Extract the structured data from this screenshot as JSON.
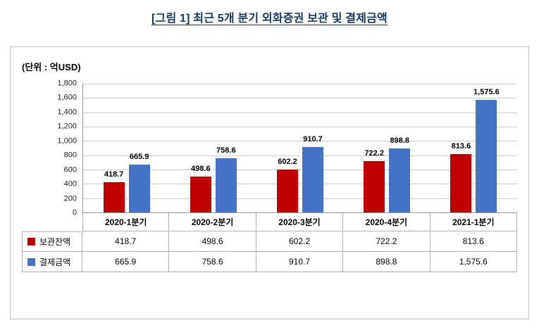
{
  "title": "[그림 1] 최근 5개 분기 외화증권 보관 및 결제금액",
  "unit_label": "(단위 : 억USD)",
  "chart_data": {
    "type": "bar",
    "title": "최근 5개 분기 외화증권 보관 및 결제금액",
    "categories": [
      "2020-1분기",
      "2020-2분기",
      "2020-3분기",
      "2020-4분기",
      "2021-1분기"
    ],
    "series": [
      {
        "name": "보관잔액",
        "color": "#C00000",
        "values": [
          418.7,
          498.6,
          602.2,
          722.2,
          813.6
        ]
      },
      {
        "name": "결제금액",
        "color": "#4472C4",
        "values": [
          665.9,
          758.6,
          910.7,
          898.8,
          1575.6
        ]
      }
    ],
    "xlabel": "",
    "ylabel": "",
    "ylim": [
      0,
      1800
    ],
    "ytick_step": 200,
    "grid": true,
    "value_labels": true,
    "legend_position": "data-table-left"
  }
}
